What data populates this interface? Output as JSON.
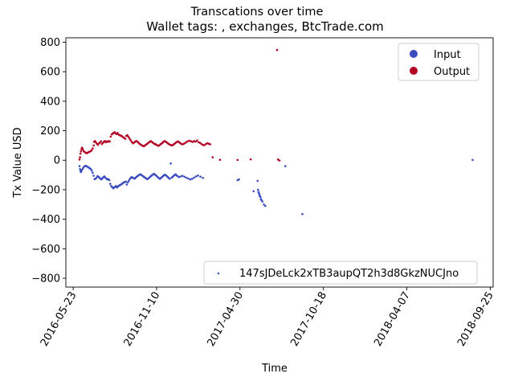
{
  "chart_data": {
    "type": "scatter",
    "title": "Transcations over time",
    "subtitle": "Wallet tags: , exchanges, BtcTrade.com",
    "xlabel": "Time",
    "ylabel": "Tx Value USD",
    "xlim": [
      "2016-05-08",
      "2018-10-01"
    ],
    "ylim": [
      -860,
      830
    ],
    "x_ticks": [
      "2016-05-23",
      "2016-11-10",
      "2017-04-30",
      "2017-10-18",
      "2018-04-07",
      "2018-09-25"
    ],
    "y_ticks": [
      -800,
      -600,
      -400,
      -200,
      0,
      200,
      400,
      600,
      800
    ],
    "y_tick_labels": [
      "−800",
      "−600",
      "−400",
      "−200",
      "0",
      "200",
      "400",
      "600",
      "800"
    ],
    "legend_placement": "top-right",
    "legend_color": {
      "entries": [
        {
          "label": "Input",
          "color": "#3b4cc0"
        },
        {
          "label": "Output",
          "color": "#b40426"
        }
      ]
    },
    "legend_series": {
      "placement": "lower-right",
      "label": "147sJDeLck2xTB3aupQT2h3d8GkzNUCJno"
    },
    "series": [
      {
        "name": "Output",
        "color": "#b40426",
        "points": [
          [
            "2016-06-05",
            5
          ],
          [
            "2016-06-06",
            20
          ],
          [
            "2016-06-07",
            45
          ],
          [
            "2016-06-08",
            60
          ],
          [
            "2016-06-09",
            75
          ],
          [
            "2016-06-10",
            85
          ],
          [
            "2016-06-11",
            80
          ],
          [
            "2016-06-12",
            70
          ],
          [
            "2016-06-14",
            60
          ],
          [
            "2016-06-16",
            55
          ],
          [
            "2016-06-18",
            50
          ],
          [
            "2016-06-20",
            48
          ],
          [
            "2016-06-22",
            52
          ],
          [
            "2016-06-24",
            55
          ],
          [
            "2016-06-26",
            58
          ],
          [
            "2016-06-28",
            62
          ],
          [
            "2016-06-30",
            68
          ],
          [
            "2016-07-02",
            80
          ],
          [
            "2016-07-04",
            100
          ],
          [
            "2016-07-05",
            125
          ],
          [
            "2016-07-07",
            130
          ],
          [
            "2016-07-09",
            120
          ],
          [
            "2016-07-11",
            110
          ],
          [
            "2016-07-13",
            105
          ],
          [
            "2016-07-15",
            115
          ],
          [
            "2016-07-17",
            120
          ],
          [
            "2016-07-19",
            128
          ],
          [
            "2016-07-21",
            110
          ],
          [
            "2016-07-23",
            118
          ],
          [
            "2016-07-25",
            125
          ],
          [
            "2016-07-27",
            130
          ],
          [
            "2016-07-29",
            122
          ],
          [
            "2016-07-31",
            128
          ],
          [
            "2016-08-02",
            125
          ],
          [
            "2016-08-04",
            130
          ],
          [
            "2016-08-06",
            127
          ],
          [
            "2016-08-08",
            160
          ],
          [
            "2016-08-10",
            175
          ],
          [
            "2016-08-12",
            180
          ],
          [
            "2016-08-14",
            185
          ],
          [
            "2016-08-16",
            190
          ],
          [
            "2016-08-18",
            182
          ],
          [
            "2016-08-20",
            178
          ],
          [
            "2016-08-22",
            185
          ],
          [
            "2016-08-24",
            175
          ],
          [
            "2016-08-26",
            170
          ],
          [
            "2016-08-28",
            168
          ],
          [
            "2016-08-30",
            165
          ],
          [
            "2016-09-01",
            160
          ],
          [
            "2016-09-03",
            155
          ],
          [
            "2016-09-05",
            150
          ],
          [
            "2016-09-07",
            145
          ],
          [
            "2016-09-09",
            165
          ],
          [
            "2016-09-11",
            170
          ],
          [
            "2016-09-13",
            160
          ],
          [
            "2016-09-15",
            150
          ],
          [
            "2016-09-17",
            140
          ],
          [
            "2016-09-19",
            130
          ],
          [
            "2016-09-21",
            120
          ],
          [
            "2016-09-23",
            115
          ],
          [
            "2016-09-25",
            120
          ],
          [
            "2016-09-27",
            125
          ],
          [
            "2016-09-29",
            130
          ],
          [
            "2016-10-01",
            128
          ],
          [
            "2016-10-03",
            122
          ],
          [
            "2016-10-05",
            115
          ],
          [
            "2016-10-07",
            110
          ],
          [
            "2016-10-09",
            105
          ],
          [
            "2016-10-11",
            100
          ],
          [
            "2016-10-13",
            98
          ],
          [
            "2016-10-15",
            95
          ],
          [
            "2016-10-17",
            100
          ],
          [
            "2016-10-19",
            105
          ],
          [
            "2016-10-21",
            110
          ],
          [
            "2016-10-23",
            115
          ],
          [
            "2016-10-25",
            120
          ],
          [
            "2016-10-27",
            125
          ],
          [
            "2016-10-29",
            130
          ],
          [
            "2016-10-31",
            125
          ],
          [
            "2016-11-02",
            120
          ],
          [
            "2016-11-04",
            115
          ],
          [
            "2016-11-06",
            110
          ],
          [
            "2016-11-08",
            108
          ],
          [
            "2016-11-10",
            105
          ],
          [
            "2016-11-12",
            100
          ],
          [
            "2016-11-14",
            98
          ],
          [
            "2016-11-16",
            102
          ],
          [
            "2016-11-18",
            108
          ],
          [
            "2016-11-20",
            112
          ],
          [
            "2016-11-22",
            118
          ],
          [
            "2016-11-24",
            125
          ],
          [
            "2016-11-26",
            130
          ],
          [
            "2016-11-28",
            128
          ],
          [
            "2016-11-30",
            122
          ],
          [
            "2016-12-02",
            118
          ],
          [
            "2016-12-04",
            112
          ],
          [
            "2016-12-06",
            108
          ],
          [
            "2016-12-08",
            105
          ],
          [
            "2016-12-10",
            102
          ],
          [
            "2016-12-12",
            100
          ],
          [
            "2016-12-14",
            105
          ],
          [
            "2016-12-16",
            110
          ],
          [
            "2016-12-18",
            115
          ],
          [
            "2016-12-20",
            120
          ],
          [
            "2016-12-22",
            125
          ],
          [
            "2016-12-24",
            128
          ],
          [
            "2016-12-26",
            122
          ],
          [
            "2016-12-28",
            118
          ],
          [
            "2016-12-30",
            112
          ],
          [
            "2017-01-02",
            108
          ],
          [
            "2017-01-05",
            112
          ],
          [
            "2017-01-08",
            118
          ],
          [
            "2017-01-11",
            125
          ],
          [
            "2017-01-14",
            130
          ],
          [
            "2017-01-17",
            132
          ],
          [
            "2017-01-20",
            128
          ],
          [
            "2017-01-23",
            124
          ],
          [
            "2017-01-26",
            130
          ],
          [
            "2017-01-29",
            126
          ],
          [
            "2017-02-01",
            134
          ],
          [
            "2017-02-04",
            122
          ],
          [
            "2017-02-07",
            118
          ],
          [
            "2017-02-10",
            110
          ],
          [
            "2017-02-13",
            104
          ],
          [
            "2017-02-16",
            102
          ],
          [
            "2017-02-19",
            110
          ],
          [
            "2017-02-22",
            115
          ],
          [
            "2017-02-25",
            112
          ],
          [
            "2017-02-28",
            108
          ],
          [
            "2017-03-05",
            20
          ],
          [
            "2017-03-20",
            3
          ],
          [
            "2017-04-25",
            2
          ],
          [
            "2017-05-22",
            6
          ],
          [
            "2017-07-15",
            747
          ],
          [
            "2017-07-17",
            5
          ],
          [
            "2017-07-20",
            -2
          ]
        ]
      },
      {
        "name": "Input",
        "color": "#3b4cc0",
        "points": [
          [
            "2016-06-05",
            -40
          ],
          [
            "2016-06-06",
            -60
          ],
          [
            "2016-06-07",
            -75
          ],
          [
            "2016-06-08",
            -80
          ],
          [
            "2016-06-09",
            -70
          ],
          [
            "2016-06-10",
            -65
          ],
          [
            "2016-06-12",
            -55
          ],
          [
            "2016-06-14",
            -45
          ],
          [
            "2016-06-16",
            -40
          ],
          [
            "2016-06-18",
            -38
          ],
          [
            "2016-06-20",
            -42
          ],
          [
            "2016-06-22",
            -45
          ],
          [
            "2016-06-24",
            -50
          ],
          [
            "2016-06-26",
            -55
          ],
          [
            "2016-06-28",
            -60
          ],
          [
            "2016-06-30",
            -70
          ],
          [
            "2016-07-02",
            -85
          ],
          [
            "2016-07-04",
            -105
          ],
          [
            "2016-07-06",
            -128
          ],
          [
            "2016-07-08",
            -125
          ],
          [
            "2016-07-10",
            -118
          ],
          [
            "2016-07-12",
            -108
          ],
          [
            "2016-07-14",
            -112
          ],
          [
            "2016-07-16",
            -118
          ],
          [
            "2016-07-18",
            -125
          ],
          [
            "2016-07-20",
            -130
          ],
          [
            "2016-07-22",
            -122
          ],
          [
            "2016-07-24",
            -115
          ],
          [
            "2016-07-26",
            -110
          ],
          [
            "2016-07-28",
            -118
          ],
          [
            "2016-07-30",
            -125
          ],
          [
            "2016-08-01",
            -130
          ],
          [
            "2016-08-03",
            -128
          ],
          [
            "2016-08-05",
            -135
          ],
          [
            "2016-08-07",
            -160
          ],
          [
            "2016-08-09",
            -175
          ],
          [
            "2016-08-11",
            -182
          ],
          [
            "2016-08-13",
            -190
          ],
          [
            "2016-08-15",
            -185
          ],
          [
            "2016-08-17",
            -180
          ],
          [
            "2016-08-19",
            -175
          ],
          [
            "2016-08-21",
            -185
          ],
          [
            "2016-08-23",
            -178
          ],
          [
            "2016-08-25",
            -172
          ],
          [
            "2016-08-27",
            -168
          ],
          [
            "2016-08-29",
            -165
          ],
          [
            "2016-08-31",
            -160
          ],
          [
            "2016-09-02",
            -155
          ],
          [
            "2016-09-04",
            -150
          ],
          [
            "2016-09-06",
            -148
          ],
          [
            "2016-09-08",
            -145
          ],
          [
            "2016-09-10",
            -165
          ],
          [
            "2016-09-12",
            -150
          ],
          [
            "2016-09-14",
            -140
          ],
          [
            "2016-09-16",
            -128
          ],
          [
            "2016-09-18",
            -120
          ],
          [
            "2016-09-20",
            -115
          ],
          [
            "2016-09-22",
            -118
          ],
          [
            "2016-09-24",
            -122
          ],
          [
            "2016-09-26",
            -125
          ],
          [
            "2016-09-28",
            -118
          ],
          [
            "2016-09-30",
            -112
          ],
          [
            "2016-10-02",
            -108
          ],
          [
            "2016-10-04",
            -102
          ],
          [
            "2016-10-06",
            -98
          ],
          [
            "2016-10-08",
            -95
          ],
          [
            "2016-10-10",
            -100
          ],
          [
            "2016-10-12",
            -105
          ],
          [
            "2016-10-14",
            -110
          ],
          [
            "2016-10-16",
            -115
          ],
          [
            "2016-10-18",
            -120
          ],
          [
            "2016-10-20",
            -125
          ],
          [
            "2016-10-22",
            -128
          ],
          [
            "2016-10-24",
            -124
          ],
          [
            "2016-10-26",
            -118
          ],
          [
            "2016-10-28",
            -112
          ],
          [
            "2016-10-30",
            -106
          ],
          [
            "2016-11-01",
            -100
          ],
          [
            "2016-11-03",
            -96
          ],
          [
            "2016-11-05",
            -92
          ],
          [
            "2016-11-07",
            -98
          ],
          [
            "2016-11-09",
            -104
          ],
          [
            "2016-11-11",
            -110
          ],
          [
            "2016-11-13",
            -116
          ],
          [
            "2016-11-15",
            -122
          ],
          [
            "2016-11-17",
            -126
          ],
          [
            "2016-11-19",
            -120
          ],
          [
            "2016-11-21",
            -114
          ],
          [
            "2016-11-23",
            -108
          ],
          [
            "2016-11-25",
            -102
          ],
          [
            "2016-11-27",
            -98
          ],
          [
            "2016-11-29",
            -102
          ],
          [
            "2016-12-01",
            -108
          ],
          [
            "2016-12-03",
            -114
          ],
          [
            "2016-12-05",
            -120
          ],
          [
            "2016-12-07",
            -126
          ],
          [
            "2016-12-09",
            -22
          ],
          [
            "2016-12-11",
            -118
          ],
          [
            "2016-12-13",
            -112
          ],
          [
            "2016-12-15",
            -106
          ],
          [
            "2016-12-17",
            -100
          ],
          [
            "2016-12-19",
            -96
          ],
          [
            "2016-12-21",
            -102
          ],
          [
            "2016-12-23",
            -108
          ],
          [
            "2016-12-26",
            -114
          ],
          [
            "2016-12-29",
            -110
          ],
          [
            "2017-01-02",
            -106
          ],
          [
            "2017-01-06",
            -112
          ],
          [
            "2017-01-10",
            -118
          ],
          [
            "2017-01-14",
            -124
          ],
          [
            "2017-01-18",
            -130
          ],
          [
            "2017-01-22",
            -126
          ],
          [
            "2017-01-26",
            -118
          ],
          [
            "2017-01-30",
            -110
          ],
          [
            "2017-02-03",
            -104
          ],
          [
            "2017-02-08",
            -112
          ],
          [
            "2017-02-13",
            -120
          ],
          [
            "2017-04-25",
            -135
          ],
          [
            "2017-04-28",
            -130
          ],
          [
            "2017-05-28",
            -210
          ],
          [
            "2017-06-05",
            -140
          ],
          [
            "2017-06-06",
            -200
          ],
          [
            "2017-06-07",
            -215
          ],
          [
            "2017-06-08",
            -225
          ],
          [
            "2017-06-09",
            -235
          ],
          [
            "2017-06-10",
            -245
          ],
          [
            "2017-06-11",
            -250
          ],
          [
            "2017-06-12",
            -265
          ],
          [
            "2017-06-13",
            -270
          ],
          [
            "2017-06-15",
            -280
          ],
          [
            "2017-06-18",
            -300
          ],
          [
            "2017-06-21",
            -310
          ],
          [
            "2017-08-01",
            -40
          ],
          [
            "2017-09-05",
            -365
          ],
          [
            "2018-08-20",
            2
          ]
        ]
      }
    ]
  }
}
